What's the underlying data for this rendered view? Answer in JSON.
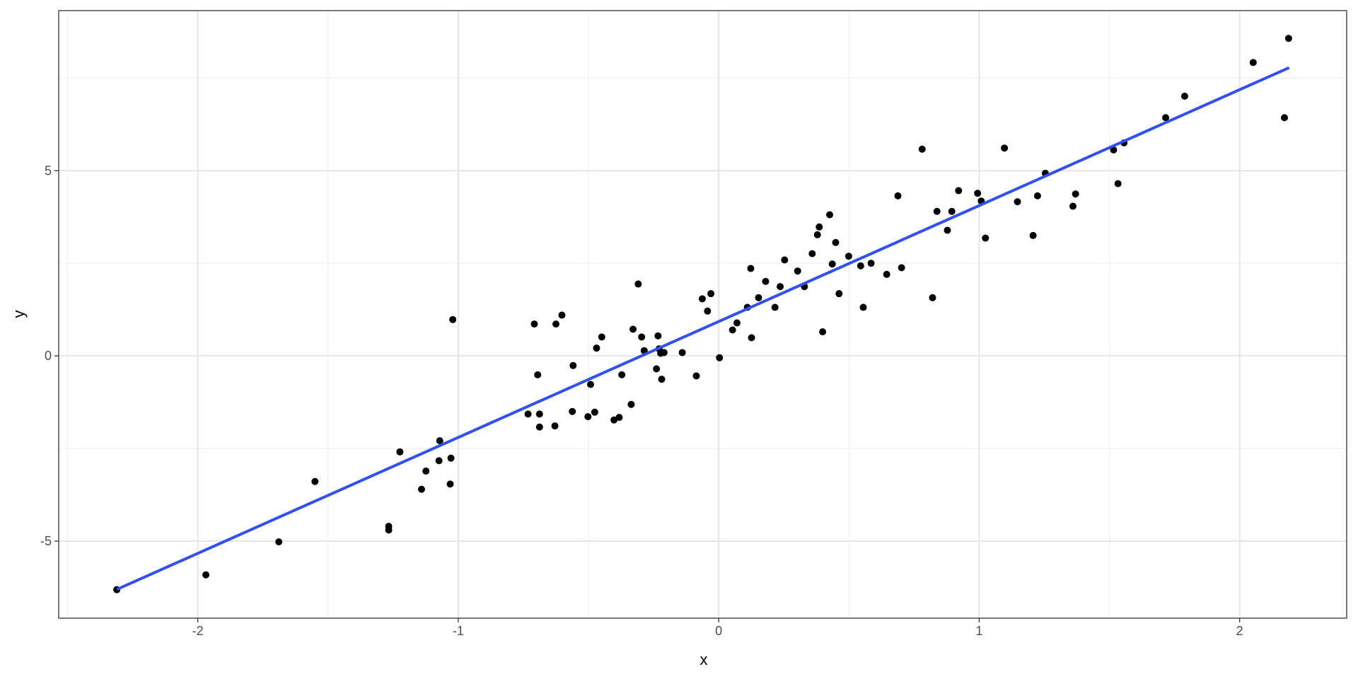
{
  "chart_data": {
    "type": "scatter",
    "x_label": "x",
    "y_label": "y",
    "x": [
      -2.311,
      -1.969,
      -1.689,
      -1.55,
      -1.267,
      -1.267,
      -1.224,
      -1.141,
      -1.124,
      -1.071,
      -1.074,
      -1.028,
      -1.031,
      -1.021,
      -0.732,
      -0.708,
      -0.695,
      -0.688,
      -0.688,
      -0.629,
      -0.625,
      -0.602,
      -0.562,
      -0.559,
      -0.502,
      -0.492,
      -0.476,
      -0.469,
      -0.449,
      -0.402,
      -0.382,
      -0.372,
      -0.336,
      -0.329,
      -0.309,
      -0.296,
      -0.286,
      -0.239,
      -0.233,
      -0.229,
      -0.223,
      -0.219,
      -0.21,
      -0.14,
      -0.086,
      -0.063,
      -0.043,
      -0.03,
      0.003,
      0.053,
      0.07,
      0.11,
      0.123,
      0.126,
      0.153,
      0.18,
      0.216,
      0.236,
      0.253,
      0.303,
      0.329,
      0.359,
      0.379,
      0.386,
      0.399,
      0.426,
      0.436,
      0.449,
      0.462,
      0.499,
      0.545,
      0.555,
      0.585,
      0.645,
      0.688,
      0.702,
      0.781,
      0.821,
      0.838,
      0.878,
      0.895,
      0.921,
      0.994,
      1.008,
      1.024,
      1.097,
      1.147,
      1.207,
      1.224,
      1.254,
      1.36,
      1.37,
      1.516,
      1.533,
      1.556,
      1.716,
      1.789,
      2.052,
      2.172,
      2.188
    ],
    "values": [
      -6.31,
      -5.91,
      -5.02,
      -3.39,
      -4.6,
      -4.7,
      -2.59,
      -3.6,
      -3.11,
      -2.29,
      -2.83,
      -2.76,
      -3.46,
      0.98,
      -1.57,
      0.86,
      -0.51,
      -1.57,
      -1.92,
      -1.89,
      0.86,
      1.1,
      -1.5,
      -0.26,
      -1.64,
      -0.77,
      -1.52,
      0.21,
      0.51,
      -1.73,
      -1.66,
      -0.51,
      -1.31,
      0.72,
      1.94,
      0.51,
      0.14,
      -0.35,
      0.54,
      0.19,
      0.07,
      -0.63,
      0.09,
      0.09,
      -0.54,
      1.54,
      1.21,
      1.68,
      -0.05,
      0.7,
      0.89,
      1.31,
      2.36,
      0.49,
      1.57,
      2.01,
      1.31,
      1.87,
      2.59,
      2.29,
      1.87,
      2.76,
      3.27,
      3.48,
      0.65,
      3.81,
      2.48,
      3.06,
      1.68,
      2.69,
      2.43,
      1.31,
      2.5,
      2.2,
      4.32,
      2.38,
      5.58,
      1.57,
      3.9,
      3.39,
      3.9,
      4.46,
      4.39,
      4.18,
      3.18,
      5.61,
      4.16,
      3.25,
      4.32,
      4.93,
      4.04,
      4.37,
      5.56,
      4.65,
      5.75,
      6.43,
      7.01,
      7.92,
      6.43,
      8.57
    ],
    "color": "#000000",
    "fit_line": {
      "color": "#3050f0",
      "x": [
        -2.31,
        2.19
      ],
      "values": [
        -6.3,
        7.78
      ]
    },
    "xlim": [
      -2.534,
      2.411
    ],
    "ylim": [
      -7.08,
      9.32
    ],
    "xticks": [
      -2,
      -1,
      0,
      1,
      2
    ],
    "yticks": [
      -5,
      0,
      5
    ],
    "grid": true
  }
}
